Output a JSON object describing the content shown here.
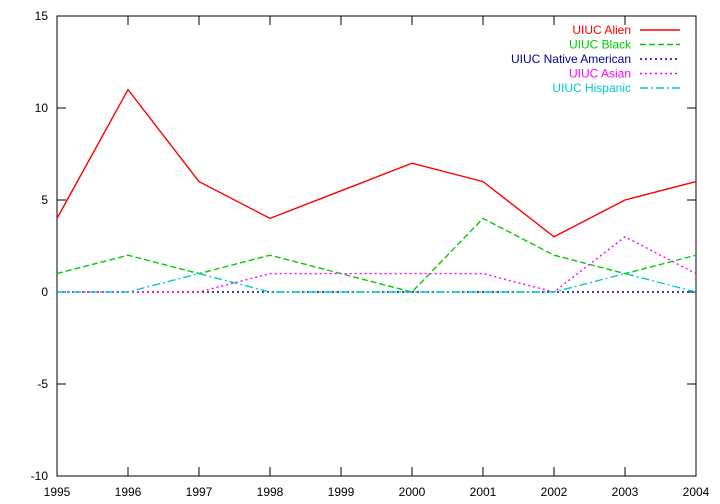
{
  "chart_data": {
    "type": "line",
    "title": "",
    "xlabel": "",
    "ylabel": "",
    "x": [
      1995,
      1996,
      1997,
      1998,
      1999,
      2000,
      2001,
      2002,
      2003,
      2004
    ],
    "xlim": [
      1995,
      2004
    ],
    "ylim": [
      -10,
      15
    ],
    "xticks": [
      "1995",
      "1996",
      "1997",
      "1998",
      "1999",
      "2000",
      "2001",
      "2002",
      "2003",
      "2004"
    ],
    "yticks": [
      "-10",
      "-5",
      "0",
      "5",
      "10",
      "15"
    ],
    "grid": false,
    "legend_position": "top-right",
    "series": [
      {
        "name": "UIUC Alien",
        "color": "#ff0000",
        "dash": "solid",
        "values": [
          4,
          11,
          6,
          4,
          5.5,
          7,
          6,
          3,
          5,
          6
        ]
      },
      {
        "name": "UIUC Black",
        "color": "#00cc00",
        "dash": "dashed",
        "values": [
          1,
          2,
          1,
          2,
          1,
          0,
          4,
          2,
          1,
          2
        ]
      },
      {
        "name": "UIUC Native American",
        "color": "#0000a0",
        "dash": "dotted",
        "values": [
          0,
          0,
          0,
          0,
          0,
          0,
          0,
          0,
          0,
          0
        ]
      },
      {
        "name": "UIUC Asian",
        "color": "#ff00ff",
        "dash": "dotted",
        "values": [
          0,
          0,
          0,
          1,
          1,
          1,
          1,
          0,
          3,
          1
        ]
      },
      {
        "name": "UIUC Hispanic",
        "color": "#00cccc",
        "dash": "dashdot",
        "values": [
          0,
          0,
          1,
          0,
          0,
          0,
          0,
          0,
          1,
          0
        ]
      }
    ]
  }
}
